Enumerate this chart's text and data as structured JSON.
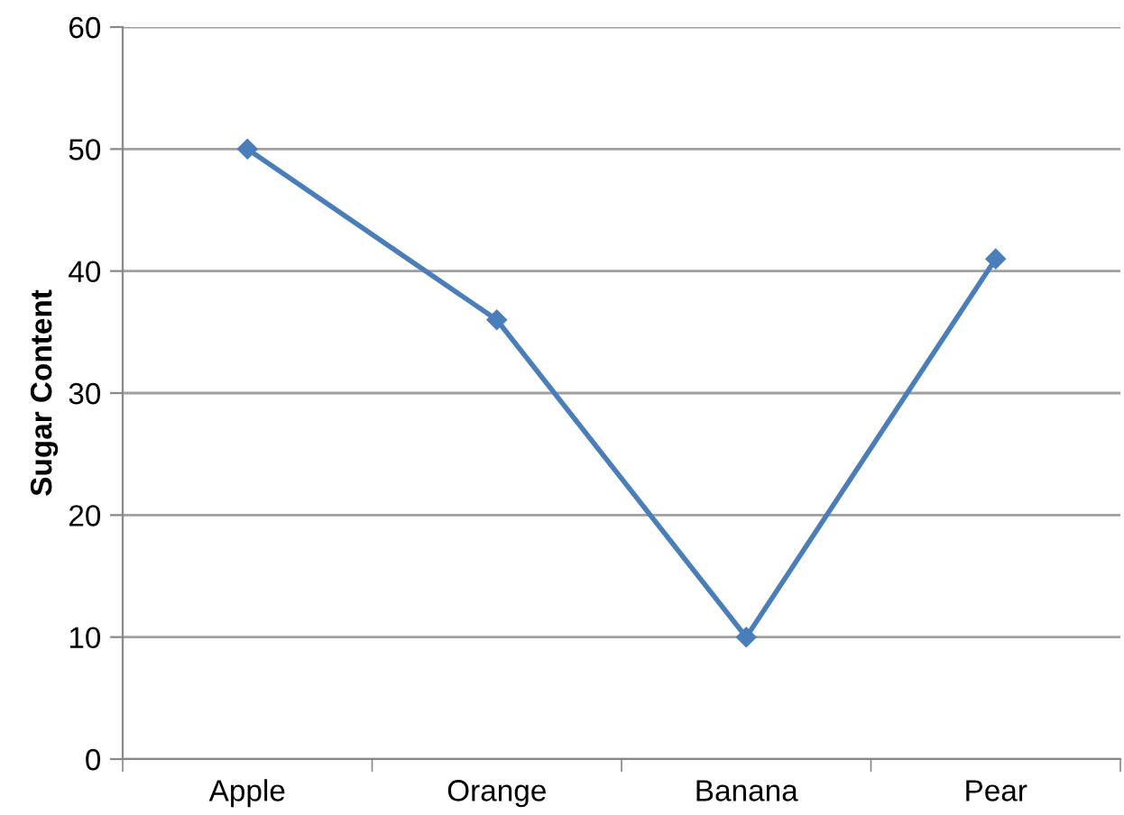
{
  "chart_data": {
    "type": "line",
    "ylabel": "Sugar Content",
    "categories": [
      "Apple",
      "Orange",
      "Banana",
      "Pear"
    ],
    "series": [
      {
        "color": "#4a7ebb",
        "values": [
          50,
          36,
          10,
          41
        ]
      }
    ],
    "ylim": [
      0,
      60
    ],
    "yticks": [
      0,
      10,
      20,
      30,
      40,
      50,
      60
    ],
    "grid": "y",
    "marker": "diamond",
    "line_style": "solid",
    "legend": false
  }
}
